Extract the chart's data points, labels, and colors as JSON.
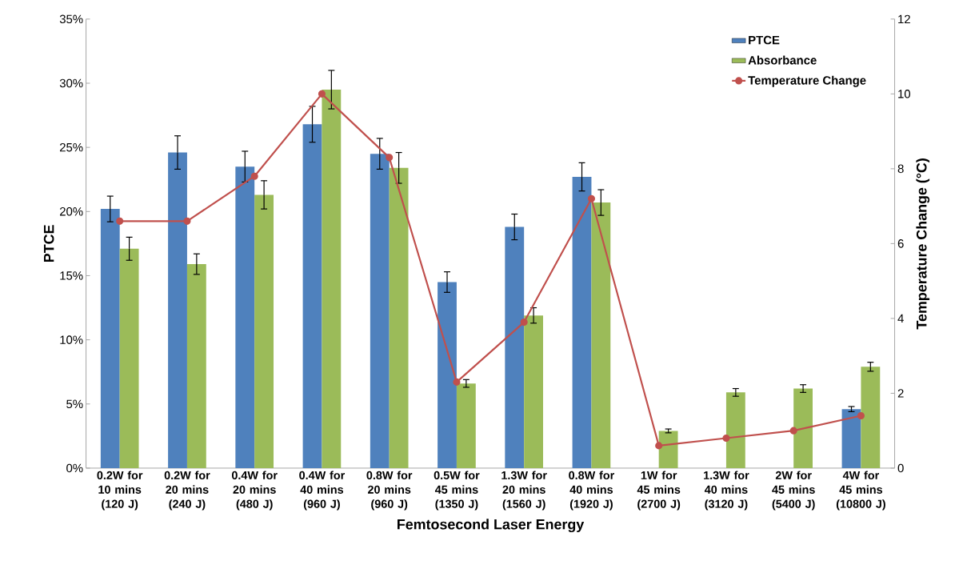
{
  "chart_data": {
    "type": "bar",
    "xlabel": "Femtosecond Laser Energy",
    "ylabel": "PTCE",
    "y2label": "Temperature Change (°C)",
    "categories": [
      "0.2W for 10 mins (120 J)",
      "0.2W for 20 mins (240 J)",
      "0.4W for 20 mins (480 J)",
      "0.4W for 40 mins (960 J)",
      "0.8W for 20 mins (960 J)",
      "0.5W for 45 mins (1350 J)",
      "1.3W for 20 mins (1560 J)",
      "0.8W for 40 mins (1920 J)",
      "1W for 45 mins (2700 J)",
      "1.3W for 40 mins (3120 J)",
      "2W for 45 mins (5400 J)",
      "4W for 45 mins (10800 J)"
    ],
    "series": [
      {
        "name": "PTCE",
        "color": "#4f81bd",
        "values": [
          20.2,
          24.6,
          23.5,
          26.8,
          24.5,
          14.5,
          18.8,
          22.7,
          null,
          null,
          null,
          4.6
        ],
        "errors": [
          1.0,
          1.3,
          1.2,
          1.4,
          1.2,
          0.8,
          1.0,
          1.1,
          null,
          null,
          null,
          0.2
        ]
      },
      {
        "name": "Absorbance",
        "color": "#9bbb59",
        "values": [
          17.1,
          15.9,
          21.3,
          29.5,
          23.4,
          6.6,
          11.9,
          20.7,
          2.9,
          5.9,
          6.2,
          7.9
        ],
        "errors": [
          0.9,
          0.8,
          1.1,
          1.5,
          1.2,
          0.3,
          0.6,
          1.0,
          0.15,
          0.3,
          0.3,
          0.35
        ]
      },
      {
        "name": "Temperature Change",
        "type": "line",
        "axis": "y2",
        "color": "#c0504d",
        "values": [
          6.6,
          6.6,
          7.8,
          10.0,
          8.3,
          2.3,
          3.9,
          7.2,
          0.6,
          0.8,
          1.0,
          1.4
        ]
      }
    ],
    "ylim": [
      0,
      35
    ],
    "yticks": [
      {
        "value": 0,
        "label": "0%"
      },
      {
        "value": 5,
        "label": "5%"
      },
      {
        "value": 10,
        "label": "10%"
      },
      {
        "value": 15,
        "label": "15%"
      },
      {
        "value": 20,
        "label": "20%"
      },
      {
        "value": 25,
        "label": "25%"
      },
      {
        "value": 30,
        "label": "30%"
      },
      {
        "value": 35,
        "label": "35%"
      }
    ],
    "y2lim": [
      0,
      12
    ],
    "y2ticks": [
      0,
      2,
      4,
      6,
      8,
      10,
      12
    ],
    "legend": "top right",
    "marker": "circle",
    "grid": false
  }
}
